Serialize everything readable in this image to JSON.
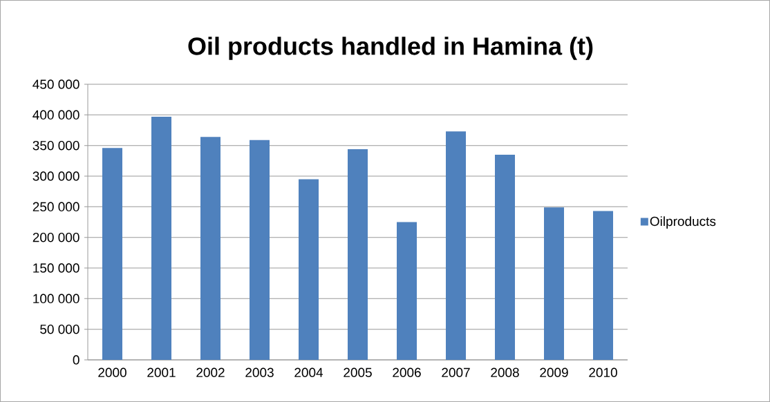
{
  "chart_data": {
    "type": "bar",
    "title": "Oil products handled in Hamina (t)",
    "categories": [
      "2000",
      "2001",
      "2002",
      "2003",
      "2004",
      "2005",
      "2006",
      "2007",
      "2008",
      "2009",
      "2010"
    ],
    "series": [
      {
        "name": "Oilproducts",
        "color": "#4f81bd",
        "values": [
          346000,
          397000,
          364000,
          359000,
          295000,
          344000,
          225000,
          373000,
          335000,
          249000,
          243000
        ]
      }
    ],
    "ylim": [
      0,
      450000
    ],
    "yticks": [
      {
        "value": 0,
        "label": "0"
      },
      {
        "value": 50000,
        "label": "50 000"
      },
      {
        "value": 100000,
        "label": "100 000"
      },
      {
        "value": 150000,
        "label": "150 000"
      },
      {
        "value": 200000,
        "label": "200 000"
      },
      {
        "value": 250000,
        "label": "250 000"
      },
      {
        "value": 300000,
        "label": "300 000"
      },
      {
        "value": 350000,
        "label": "350 000"
      },
      {
        "value": 400000,
        "label": "400 000"
      },
      {
        "value": 450000,
        "label": "450 000"
      }
    ],
    "grid": "y",
    "legend": "right"
  }
}
